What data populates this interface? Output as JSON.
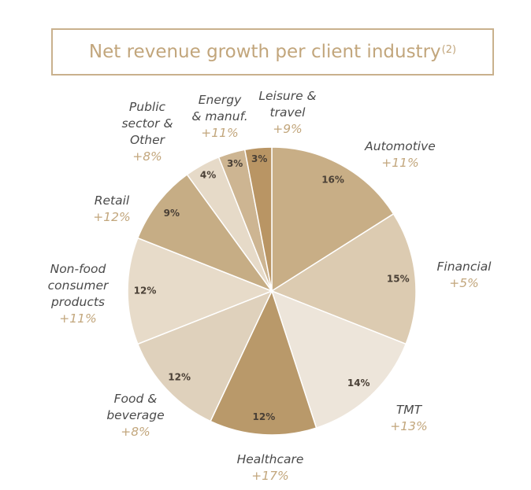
{
  "chart_data": {
    "type": "pie",
    "title": "Net revenue growth per client industry",
    "title_note": "(2)",
    "categories": [
      "Automotive",
      "Financial",
      "TMT",
      "Healthcare",
      "Food &\nbeverage",
      "Non-food\nconsumer\nproducts",
      "Retail",
      "Public\nsector &\nOther",
      "Energy\n& manuf.",
      "Leisure &\ntravel"
    ],
    "values": [
      16,
      15,
      14,
      12,
      12,
      12,
      9,
      4,
      3,
      3
    ],
    "value_labels": [
      "16%",
      "15%",
      "14%",
      "12%",
      "12%",
      "12%",
      "9%",
      "4%",
      "3%",
      "3%"
    ],
    "growth": [
      "+11%",
      "+5%",
      "+13%",
      "+17%",
      "+8%",
      "+11%",
      "+12%",
      "+8%",
      "+11%",
      "+9%"
    ],
    "colors": [
      "#c8ae86",
      "#dccbb1",
      "#ede5da",
      "#b9996a",
      "#dfd1bc",
      "#e7dbc9",
      "#c6ad85",
      "#e6dac8",
      "#cdb592",
      "#b99564"
    ]
  }
}
